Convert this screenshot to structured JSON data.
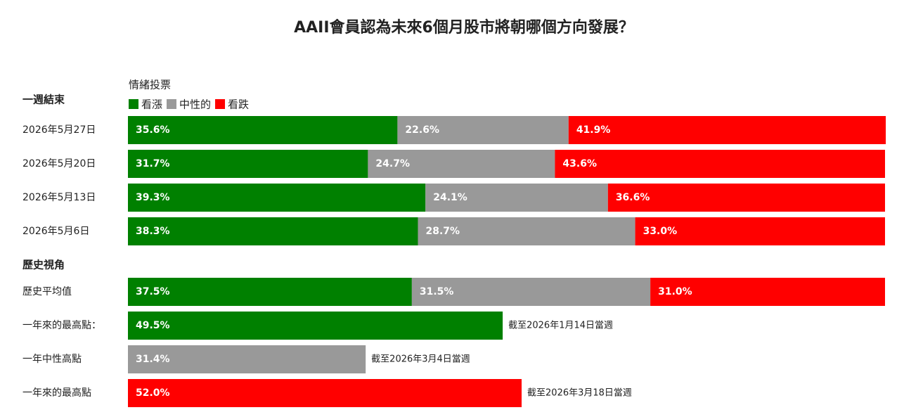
{
  "chart_data": {
    "type": "bar",
    "orientation": "horizontal",
    "stacked": true,
    "title": "AAII會員認為未來6個月股市將朝哪個方向發展？",
    "legend_title": "情緒投票",
    "xlim": [
      0,
      100
    ],
    "series": [
      {
        "name": "看漲",
        "color": "#008000"
      },
      {
        "name": "中性的",
        "color": "#999999"
      },
      {
        "name": "看跌",
        "color": "#ff0000"
      }
    ],
    "groups": [
      {
        "title": "一週結束",
        "rows": [
          {
            "category": "2026年5月27日",
            "values": [
              35.6,
              22.6,
              41.9
            ],
            "value_labels": [
              "35.6%",
              "22.6%",
              "41.9%"
            ]
          },
          {
            "category": "2026年5月20日",
            "values": [
              31.7,
              24.7,
              43.6
            ],
            "value_labels": [
              "31.7%",
              "24.7%",
              "43.6%"
            ]
          },
          {
            "category": "2026年5月13日",
            "values": [
              39.3,
              24.1,
              36.6
            ],
            "value_labels": [
              "39.3%",
              "24.1%",
              "36.6%"
            ]
          },
          {
            "category": "2026年5月6日",
            "values": [
              38.3,
              28.7,
              33.0
            ],
            "value_labels": [
              "38.3%",
              "28.7%",
              "33.0%"
            ]
          }
        ]
      },
      {
        "title": "歷史視角",
        "rows": [
          {
            "category": "歷史平均值",
            "values": [
              37.5,
              31.5,
              31.0
            ],
            "value_labels": [
              "37.5%",
              "31.5%",
              "31.0%"
            ]
          },
          {
            "category": "一年來的最高點：",
            "values": [
              49.5,
              null,
              null
            ],
            "value_labels": [
              "49.5%",
              null,
              null
            ],
            "note": "截至2026年1月14日當週"
          },
          {
            "category": "一年中性高點",
            "values": [
              null,
              31.4,
              null
            ],
            "value_labels": [
              null,
              "31.4%",
              null
            ],
            "note": "截至2026年3月4日當週"
          },
          {
            "category": "一年來的最高點",
            "values": [
              null,
              null,
              52.0
            ],
            "value_labels": [
              null,
              null,
              "52.0%"
            ],
            "note": "截至2026年3月18日當週"
          }
        ]
      }
    ]
  }
}
